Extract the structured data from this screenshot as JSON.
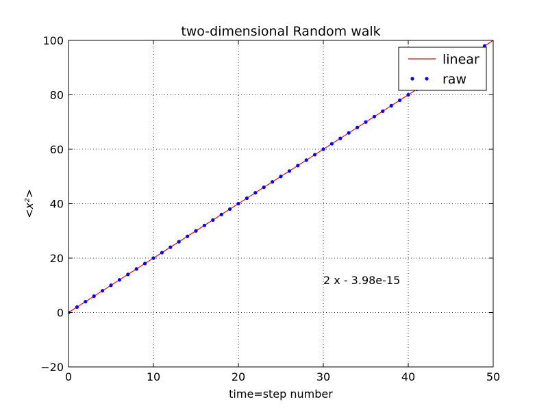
{
  "chart_data": {
    "type": "line",
    "title": "two-dimensional Random walk",
    "xlabel": "time=step number",
    "ylabel": "<x²>",
    "xlim": [
      0,
      50
    ],
    "ylim": [
      -20,
      100
    ],
    "xticks": [
      0,
      10,
      20,
      30,
      40,
      50
    ],
    "yticks": [
      -20,
      0,
      20,
      40,
      60,
      80,
      100
    ],
    "grid": true,
    "legend_position": "top-right",
    "annotation": {
      "text": "2 x - 3.98e-15",
      "x": 30,
      "y": 10
    },
    "series": [
      {
        "name": "linear",
        "style": "line",
        "color": "#ff0000",
        "x": [
          0,
          50
        ],
        "y": [
          0,
          100
        ]
      },
      {
        "name": "raw",
        "style": "points",
        "color": "#0000ff",
        "x": [
          0,
          1,
          2,
          3,
          4,
          5,
          6,
          7,
          8,
          9,
          10,
          11,
          12,
          13,
          14,
          15,
          16,
          17,
          18,
          19,
          20,
          21,
          22,
          23,
          24,
          25,
          26,
          27,
          28,
          29,
          30,
          31,
          32,
          33,
          34,
          35,
          36,
          37,
          38,
          39,
          40,
          41,
          42,
          43,
          44,
          45,
          46,
          47,
          48,
          49
        ],
        "y": [
          0,
          2,
          4,
          6,
          8,
          10,
          12,
          14,
          16,
          18,
          20,
          22,
          24,
          26,
          28,
          30,
          32,
          34,
          36,
          38,
          40,
          42,
          44,
          46,
          48,
          50,
          52,
          54,
          56,
          58,
          60,
          62,
          64,
          66,
          68,
          70,
          72,
          74,
          76,
          78,
          80,
          82,
          84,
          86,
          88,
          90,
          92,
          94,
          96,
          98
        ]
      }
    ]
  }
}
